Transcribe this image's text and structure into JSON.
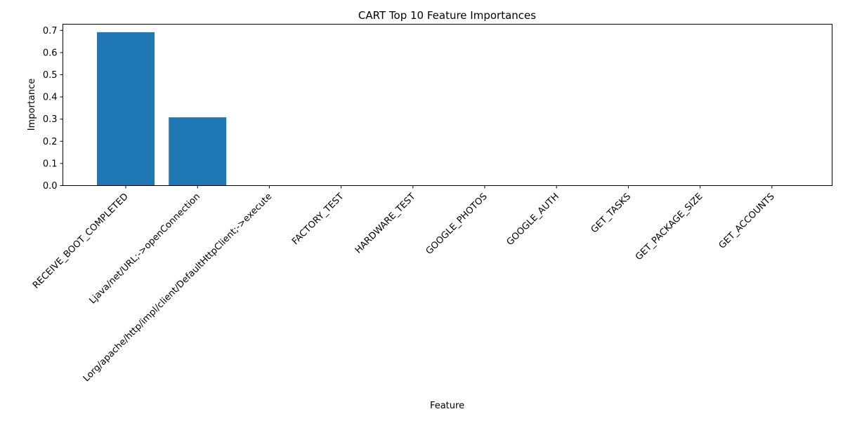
{
  "chart_data": {
    "type": "bar",
    "title": "CART Top 10 Feature Importances",
    "xlabel": "Feature",
    "ylabel": "Importance",
    "categories": [
      "RECEIVE_BOOT_COMPLETED",
      "Ljava/net/URL;->openConnection",
      "Lorg/apache/http/impl/client/DefaultHttpClient;->execute",
      "FACTORY_TEST",
      "HARDWARE_TEST",
      "GOOGLE_PHOTOS",
      "GOOGLE_AUTH",
      "GET_TASKS",
      "GET_PACKAGE_SIZE",
      "GET_ACCOUNTS"
    ],
    "values": [
      0.692,
      0.308,
      0.0,
      0.0,
      0.0,
      0.0,
      0.0,
      0.0,
      0.0,
      0.0
    ],
    "ylim": [
      0,
      0.728
    ],
    "yticks": [
      "0.0",
      "0.1",
      "0.2",
      "0.3",
      "0.4",
      "0.5",
      "0.6",
      "0.7"
    ],
    "bar_color": "#1f77b4",
    "grid": false
  }
}
